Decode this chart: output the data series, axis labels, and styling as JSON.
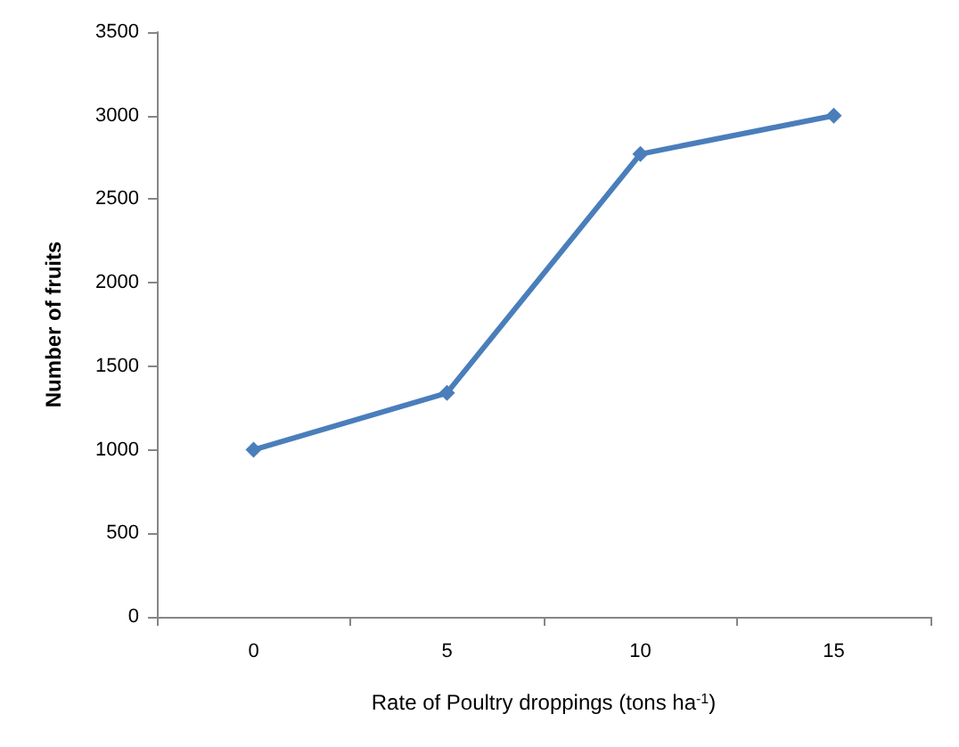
{
  "chart_data": {
    "type": "line",
    "xlabel": "Rate of Poultry droppings (tons ha$^{-1}$)",
    "ylabel": "Number of fruits",
    "categories": [
      "0",
      "5",
      "10",
      "15"
    ],
    "series": [
      {
        "color": "#4a7ebb",
        "values": [
          1000,
          1340,
          2770,
          3000
        ]
      }
    ],
    "ylim": [
      0,
      3500
    ],
    "yticks": [
      0,
      500,
      1000,
      1500,
      2000,
      2500,
      3000,
      3500
    ],
    "grid": false,
    "marker": "diamond",
    "line_style": "solid"
  }
}
